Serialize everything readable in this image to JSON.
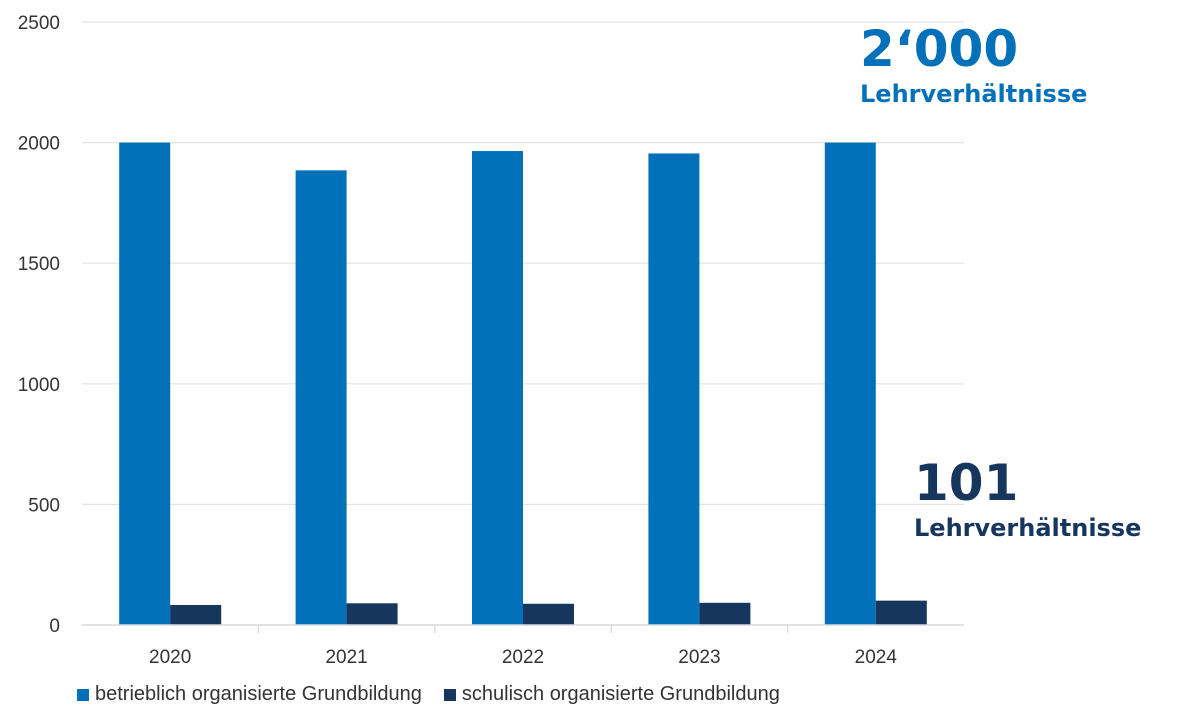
{
  "chart_data": {
    "type": "bar",
    "categories": [
      "2020",
      "2021",
      "2022",
      "2023",
      "2024"
    ],
    "series": [
      {
        "name": "betrieblich organisierte Grundbildung",
        "values": [
          2000,
          1885,
          1965,
          1955,
          2000
        ],
        "color": "#0271b9"
      },
      {
        "name": "schulisch organisierte Grundbildung",
        "values": [
          83,
          90,
          88,
          92,
          101
        ],
        "color": "#16365e"
      }
    ],
    "ylim": [
      0,
      2500
    ],
    "yticks": [
      0,
      500,
      1000,
      1500,
      2000,
      2500
    ],
    "grid": true,
    "legend": "bottom",
    "title": "",
    "xlabel": "",
    "ylabel": ""
  },
  "callouts": [
    {
      "value": "2‘000",
      "label": "Lehrverhältnisse",
      "color": "#0271b9"
    },
    {
      "value": "101",
      "label": "Lehrverhältnisse",
      "color": "#16365e"
    }
  ]
}
